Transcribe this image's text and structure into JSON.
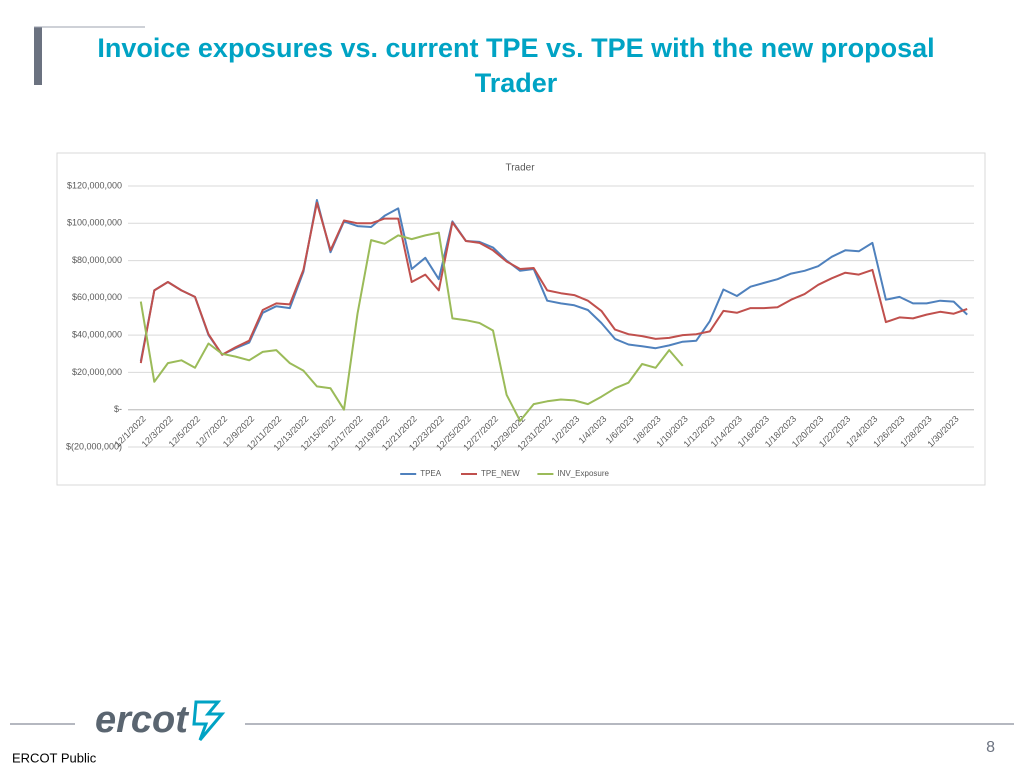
{
  "slide": {
    "title": "Invoice exposures vs. current TPE vs. TPE with the new proposal",
    "subtitle": "Trader",
    "logo": "ercot",
    "footer": "ERCOT Public",
    "page_number": "8"
  },
  "chart_data": {
    "type": "line",
    "title": "Trader",
    "categories": [
      "12/1/2022",
      null,
      "12/3/2022",
      null,
      "12/5/2022",
      null,
      "12/7/2022",
      null,
      "12/9/2022",
      null,
      "12/11/2022",
      null,
      "12/13/2022",
      null,
      "12/15/2022",
      null,
      "12/17/2022",
      null,
      "12/19/2022",
      null,
      "12/21/2022",
      null,
      "12/23/2022",
      null,
      "12/25/2022",
      null,
      "12/27/2022",
      null,
      "12/29/2022",
      null,
      "12/31/2022",
      null,
      "1/2/2023",
      null,
      "1/4/2023",
      null,
      "1/6/2023",
      null,
      "1/8/2023",
      null,
      "1/10/2023",
      null,
      "1/12/2023",
      null,
      "1/14/2023",
      null,
      "1/16/2023",
      null,
      "1/18/2023",
      null,
      "1/20/2023",
      null,
      "1/22/2023",
      null,
      "1/24/2023",
      null,
      "1/26/2023",
      null,
      "1/28/2023",
      null,
      "1/30/2023",
      null
    ],
    "series": [
      {
        "name": "TPEA",
        "color": "#4f81bd",
        "values": [
          26000000,
          64000000,
          68500000,
          64000000,
          60500000,
          40000000,
          29500000,
          33000000,
          36000000,
          52000000,
          55500000,
          54500000,
          74000000,
          112500000,
          84500000,
          101000000,
          98500000,
          98000000,
          104000000,
          108000000,
          75500000,
          81500000,
          70000000,
          101000000,
          90500000,
          90000000,
          87000000,
          80000000,
          74500000,
          75500000,
          58500000,
          57000000,
          56000000,
          53500000,
          46500000,
          38000000,
          35000000,
          34000000,
          33000000,
          34500000,
          36500000,
          37000000,
          47500000,
          64500000,
          61000000,
          66000000,
          68000000,
          70000000,
          73000000,
          74500000,
          77000000,
          82000000,
          85500000,
          85000000,
          89500000,
          59000000,
          60500000,
          57000000,
          57000000,
          58500000,
          58000000,
          51000000
        ]
      },
      {
        "name": "TPE_NEW",
        "color": "#c0504d",
        "values": [
          25000000,
          64000000,
          68500000,
          64000000,
          60500000,
          40500000,
          29500000,
          33500000,
          37000000,
          53500000,
          57000000,
          56500000,
          75000000,
          111000000,
          85500000,
          101500000,
          100000000,
          100000000,
          102500000,
          102500000,
          68500000,
          72500000,
          64000000,
          100500000,
          90500000,
          89500000,
          85500000,
          79500000,
          75500000,
          76000000,
          64000000,
          62500000,
          61500000,
          58500000,
          53000000,
          43000000,
          40500000,
          39500000,
          38000000,
          38500000,
          40000000,
          40500000,
          42000000,
          53000000,
          52000000,
          54500000,
          54500000,
          55000000,
          59000000,
          62000000,
          67000000,
          70500000,
          73500000,
          72500000,
          75000000,
          47000000,
          49500000,
          49000000,
          51000000,
          52500000,
          51500000,
          54000000
        ]
      },
      {
        "name": "INV_Exposure",
        "color": "#9bbb59",
        "values": [
          58000000,
          15000000,
          25000000,
          26500000,
          22500000,
          35500000,
          30000000,
          28500000,
          26500000,
          31000000,
          32000000,
          25000000,
          21000000,
          12500000,
          11500000,
          0,
          51500000,
          91000000,
          89000000,
          93500000,
          91500000,
          93500000,
          95000000,
          49000000,
          48000000,
          46500000,
          42500000,
          8000000,
          -6000000,
          3000000,
          4500000,
          5500000,
          5000000,
          3000000,
          7000000,
          11500000,
          14500000,
          24500000,
          22500000,
          32000000,
          23500000,
          null,
          null,
          null,
          null,
          null,
          null,
          null,
          null,
          null,
          null,
          null,
          null,
          null,
          null,
          null,
          null,
          null,
          null,
          null,
          null,
          null
        ]
      }
    ],
    "ylim": [
      -20000000,
      120000000
    ],
    "yticks": [
      {
        "value": -20000000,
        "label": "$(20,000,000)"
      },
      {
        "value": 0,
        "label": "$-"
      },
      {
        "value": 20000000,
        "label": "$20,000,000"
      },
      {
        "value": 40000000,
        "label": "$40,000,000"
      },
      {
        "value": 60000000,
        "label": "$60,000,000"
      },
      {
        "value": 80000000,
        "label": "$80,000,000"
      },
      {
        "value": 100000000,
        "label": "$100,000,000"
      },
      {
        "value": 120000000,
        "label": "$120,000,000"
      }
    ],
    "grid": true,
    "legend": "bottom"
  }
}
